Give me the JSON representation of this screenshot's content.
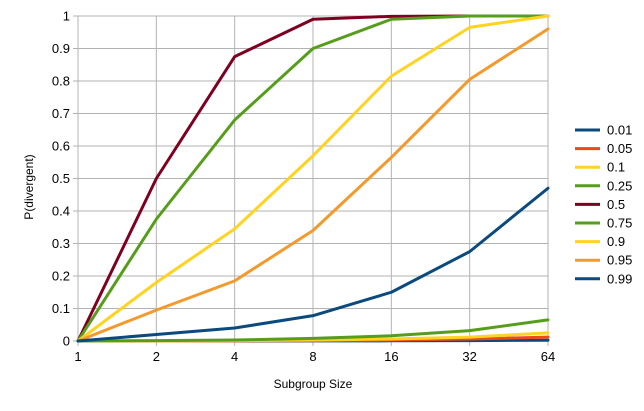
{
  "chart_data": {
    "type": "line",
    "xlabel": "Subgroup Size",
    "ylabel": "P(divergent)",
    "x": [
      "1",
      "2",
      "4",
      "8",
      "16",
      "32",
      "64"
    ],
    "ylim": [
      0,
      1
    ],
    "yticks": [
      "0",
      "0.1",
      "0.2",
      "0.3",
      "0.4",
      "0.5",
      "0.6",
      "0.7",
      "0.8",
      "0.9",
      "1"
    ],
    "grid": "horizontal and vertical",
    "legend_position": "right",
    "series": [
      {
        "name": "0.01",
        "color": "#0a4a7d",
        "values": [
          0,
          5e-05,
          0.0001,
          0.0003,
          0.0006,
          0.0012,
          0.0025
        ]
      },
      {
        "name": "0.05",
        "color": "#ee4a14",
        "values": [
          0,
          0.0002,
          0.0004,
          0.0012,
          0.003,
          0.006,
          0.012
        ]
      },
      {
        "name": "0.1",
        "color": "#ffd320",
        "values": [
          0,
          0.0005,
          0.001,
          0.003,
          0.006,
          0.012,
          0.025
        ]
      },
      {
        "name": "0.25",
        "color": "#579d1c",
        "values": [
          0,
          0.001,
          0.003,
          0.008,
          0.016,
          0.032,
          0.065
        ]
      },
      {
        "name": "0.5",
        "color": "#7e0021",
        "values": [
          0,
          0.5,
          0.875,
          0.99,
          0.999,
          1.0,
          1.0
        ]
      },
      {
        "name": "0.75",
        "color": "#579d1c",
        "values": [
          0,
          0.375,
          0.68,
          0.9,
          0.99,
          1.0,
          1.0
        ]
      },
      {
        "name": "0.9",
        "color": "#ffd320",
        "values": [
          0,
          0.18,
          0.345,
          0.57,
          0.815,
          0.965,
          1.0
        ]
      },
      {
        "name": "0.95",
        "color": "#f39a2c",
        "values": [
          0,
          0.095,
          0.185,
          0.34,
          0.565,
          0.805,
          0.96
        ]
      },
      {
        "name": "0.99",
        "color": "#0a4a7d",
        "values": [
          0,
          0.02,
          0.04,
          0.078,
          0.15,
          0.275,
          0.47
        ]
      }
    ]
  }
}
